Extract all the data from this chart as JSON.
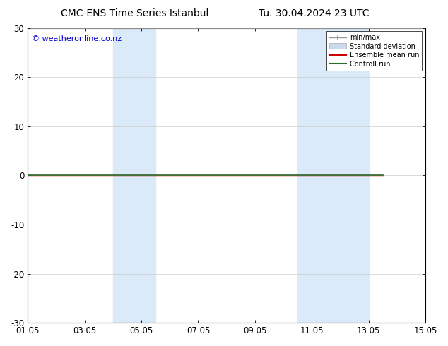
{
  "title_left": "CMC-ENS Time Series Istanbul",
  "title_right": "Tu. 30.04.2024 23 UTC",
  "watermark": "© weatheronline.co.nz",
  "ylim": [
    -30,
    30
  ],
  "yticks": [
    -30,
    -20,
    -10,
    0,
    10,
    20,
    30
  ],
  "xtick_labels": [
    "01.05",
    "03.05",
    "05.05",
    "07.05",
    "09.05",
    "11.05",
    "13.05",
    "15.05"
  ],
  "xtick_positions": [
    0,
    2,
    4,
    6,
    8,
    10,
    12,
    14
  ],
  "xlim": [
    0,
    14
  ],
  "shaded_bands": [
    {
      "x_start": 3.0,
      "x_end": 4.5
    },
    {
      "x_start": 9.5,
      "x_end": 12.0
    }
  ],
  "line_x_end": 12.5,
  "background_color": "#ffffff",
  "shade_color": "#daeaf8",
  "control_run_color": "#2d6a2d",
  "ensemble_mean_color": "#cc0000",
  "minmax_color": "#999999",
  "stddev_color": "#c8daf0",
  "legend_entries": [
    "min/max",
    "Standard deviation",
    "Ensemble mean run",
    "Controll run"
  ],
  "watermark_color": "#0000cc",
  "title_fontsize": 10,
  "axis_fontsize": 8.5,
  "watermark_fontsize": 8
}
